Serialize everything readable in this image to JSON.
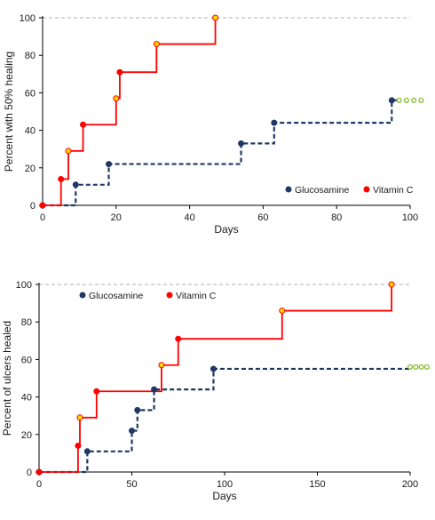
{
  "chart_data": [
    {
      "type": "line",
      "step": true,
      "xlabel": "Days",
      "ylabel": "Percent with 50% healing",
      "xlim": [
        0,
        100
      ],
      "ylim": [
        0,
        100
      ],
      "xticks": [
        0,
        20,
        40,
        60,
        80,
        100
      ],
      "yticks": [
        0,
        20,
        40,
        60,
        80,
        100
      ],
      "reference_line_y": 100,
      "legend_position": "bottom-right",
      "series": [
        {
          "name": "Glucosamine",
          "color": "#1f3864",
          "line_style": "dashed",
          "points": [
            [
              0,
              0
            ],
            [
              9,
              11
            ],
            [
              18,
              22
            ],
            [
              54,
              33
            ],
            [
              63,
              44
            ],
            [
              95,
              56
            ]
          ],
          "censored": [
            [
              97,
              56
            ],
            [
              99,
              56
            ],
            [
              101,
              56
            ],
            [
              103,
              56
            ]
          ]
        },
        {
          "name": "Vitamin C",
          "color": "#ff0000",
          "line_style": "solid",
          "points": [
            [
              0,
              0
            ],
            [
              5,
              14
            ],
            [
              7,
              29
            ],
            [
              11,
              43
            ],
            [
              20,
              57
            ],
            [
              21,
              71
            ],
            [
              31,
              86
            ],
            [
              47,
              100
            ]
          ]
        }
      ]
    },
    {
      "type": "line",
      "step": true,
      "xlabel": "Days",
      "ylabel": "Percent of ulcers healed",
      "xlim": [
        0,
        200
      ],
      "ylim": [
        0,
        100
      ],
      "xticks": [
        0,
        50,
        100,
        150,
        200
      ],
      "yticks": [
        0,
        20,
        40,
        60,
        80,
        100
      ],
      "reference_line_y": 100,
      "legend_position": "top-left",
      "series": [
        {
          "name": "Glucosamine",
          "color": "#1f3864",
          "line_style": "dashed",
          "points": [
            [
              0,
              0
            ],
            [
              26,
              11
            ],
            [
              50,
              22
            ],
            [
              53,
              33
            ],
            [
              62,
              44
            ],
            [
              94,
              55
            ]
          ],
          "censored": [
            [
              200,
              56
            ],
            [
              203,
              56
            ],
            [
              206,
              56
            ],
            [
              209,
              56
            ]
          ]
        },
        {
          "name": "Vitamin C",
          "color": "#ff0000",
          "line_style": "solid",
          "points": [
            [
              0,
              0
            ],
            [
              21,
              14
            ],
            [
              22,
              29
            ],
            [
              31,
              43
            ],
            [
              66,
              57
            ],
            [
              75,
              71
            ],
            [
              131,
              86
            ],
            [
              190,
              100
            ]
          ]
        }
      ]
    }
  ]
}
